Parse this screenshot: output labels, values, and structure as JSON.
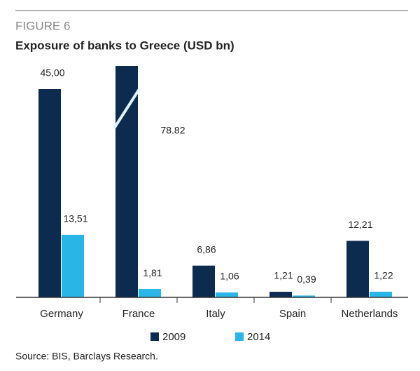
{
  "chart_data": {
    "type": "bar",
    "figure_label": "FIGURE 6",
    "title": "Exposure of banks to Greece (USD bn)",
    "source": "Source: BIS, Barclays Research.",
    "categories": [
      "Germany",
      "France",
      "Italy",
      "Spain",
      "Netherlands"
    ],
    "series": [
      {
        "name": "2009",
        "color": "#0d2b4e",
        "values": [
          45.0,
          78.82,
          6.86,
          1.21,
          12.21
        ],
        "value_labels": [
          "45,00",
          "78.82",
          "6,86",
          "1,21",
          "12,21"
        ]
      },
      {
        "name": "2014",
        "color": "#29b6e6",
        "values": [
          13.51,
          1.81,
          1.06,
          0.39,
          1.22
        ],
        "value_labels": [
          "13,51",
          "1,81",
          "1,06",
          "0,39",
          "1,22"
        ]
      }
    ],
    "ylim": [
      0,
      50
    ]
  }
}
